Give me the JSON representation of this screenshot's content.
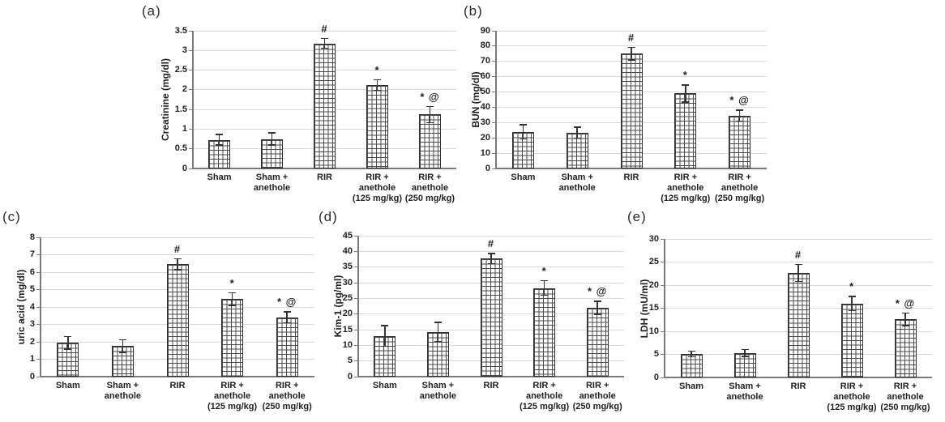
{
  "figure": {
    "background": "#ffffff",
    "text_color": "#1f1f1f",
    "gridline_color": "#d9d9d9",
    "axis_color": "#7a7a7a",
    "bar_fill": "#ffffff",
    "bar_hatch_color": "#4a4a4a",
    "bar_border_color": "#2e2e2e",
    "significance_symbols": {
      "hash": "#",
      "asterisk": "*",
      "at": "@"
    }
  },
  "chart_data": [
    {
      "type": "bar",
      "panel_label": "(a)",
      "ylabel": "Creatinine (mg/dl)",
      "ylim": [
        0,
        3.5
      ],
      "ytick_step": 0.5,
      "yticks": [
        "0",
        "0.5",
        "1",
        "1.5",
        "2",
        "2.5",
        "3",
        "3.5"
      ],
      "grid": "horizontal",
      "legend": "none",
      "categories": [
        [
          "Sham"
        ],
        [
          "Sham +",
          "anethole"
        ],
        [
          "RIR"
        ],
        [
          "RIR +",
          "anethole",
          "(125 mg/kg)"
        ],
        [
          "RIR +",
          "anethole",
          "(250 mg/kg)"
        ]
      ],
      "values": [
        0.73,
        0.75,
        3.18,
        2.12,
        1.37
      ],
      "errors": [
        0.13,
        0.15,
        0.12,
        0.13,
        0.2
      ],
      "annotations": [
        "",
        "",
        "#",
        "*",
        "* @"
      ]
    },
    {
      "type": "bar",
      "panel_label": "(b)",
      "ylabel": "BUN (mg/dl)",
      "ylim": [
        0,
        90
      ],
      "ytick_step": 10,
      "yticks": [
        "0",
        "10",
        "20",
        "30",
        "40",
        "50",
        "60",
        "70",
        "80",
        "90"
      ],
      "grid": "horizontal",
      "legend": "none",
      "categories": [
        [
          "Sham"
        ],
        [
          "Sham +",
          "anethole"
        ],
        [
          "RIR"
        ],
        [
          "RIR +",
          "anethole",
          "(125 mg/kg)"
        ],
        [
          "RIR +",
          "anethole",
          "(250 mg/kg)"
        ]
      ],
      "values": [
        24,
        23.5,
        75,
        49,
        34.5
      ],
      "errors": [
        4.5,
        3.5,
        4,
        5.5,
        3.5
      ],
      "annotations": [
        "",
        "",
        "#",
        "*",
        "* @"
      ]
    },
    {
      "type": "bar",
      "panel_label": "(c)",
      "ylabel": "uric acid (mg/dl)",
      "ylim": [
        0,
        8
      ],
      "ytick_step": 1,
      "yticks": [
        "0",
        "1",
        "2",
        "3",
        "4",
        "5",
        "6",
        "7",
        "8"
      ],
      "grid": "horizontal",
      "legend": "none",
      "categories": [
        [
          "Sham"
        ],
        [
          "Sham +",
          "anethole"
        ],
        [
          "RIR"
        ],
        [
          "RIR +",
          "anethole",
          "(125 mg/kg)"
        ],
        [
          "RIR +",
          "anethole",
          "(250 mg/kg)"
        ]
      ],
      "values": [
        1.95,
        1.75,
        6.45,
        4.45,
        3.4
      ],
      "errors": [
        0.35,
        0.35,
        0.3,
        0.35,
        0.3
      ],
      "annotations": [
        "",
        "",
        "#",
        "*",
        "* @"
      ]
    },
    {
      "type": "bar",
      "panel_label": "(d)",
      "ylabel": "Kim-1 (pg/ml)",
      "ylim": [
        0,
        45
      ],
      "ytick_step": 5,
      "yticks": [
        "0",
        "5",
        "10",
        "15",
        "20",
        "25",
        "30",
        "35",
        "40",
        "45"
      ],
      "grid": "horizontal",
      "legend": "none",
      "categories": [
        [
          "Sham"
        ],
        [
          "Sham +",
          "anethole"
        ],
        [
          "RIR"
        ],
        [
          "RIR +",
          "anethole",
          "(125 mg/kg)"
        ],
        [
          "RIR +",
          "anethole",
          "(250 mg/kg)"
        ]
      ],
      "values": [
        13,
        14.3,
        37.7,
        28.3,
        22
      ],
      "errors": [
        3.2,
        3,
        1.6,
        2.3,
        2
      ],
      "annotations": [
        "",
        "",
        "#",
        "*",
        "* @"
      ]
    },
    {
      "type": "bar",
      "panel_label": "(e)",
      "ylabel": "LDH (mU/ml)",
      "ylim": [
        0,
        30
      ],
      "ytick_step": 5,
      "yticks": [
        "0",
        "5",
        "10",
        "15",
        "20",
        "25",
        "30"
      ],
      "grid": "horizontal",
      "legend": "none",
      "categories": [
        [
          "Sham"
        ],
        [
          "Sham +",
          "anethole"
        ],
        [
          "RIR"
        ],
        [
          "RIR +",
          "anethole",
          "(125 mg/kg)"
        ],
        [
          "RIR +",
          "anethole",
          "(250 mg/kg)"
        ]
      ],
      "values": [
        5.1,
        5.3,
        22.6,
        16,
        12.6
      ],
      "errors": [
        0.6,
        0.7,
        1.8,
        1.5,
        1.3
      ],
      "annotations": [
        "",
        "",
        "#",
        "*",
        "* @"
      ]
    }
  ]
}
